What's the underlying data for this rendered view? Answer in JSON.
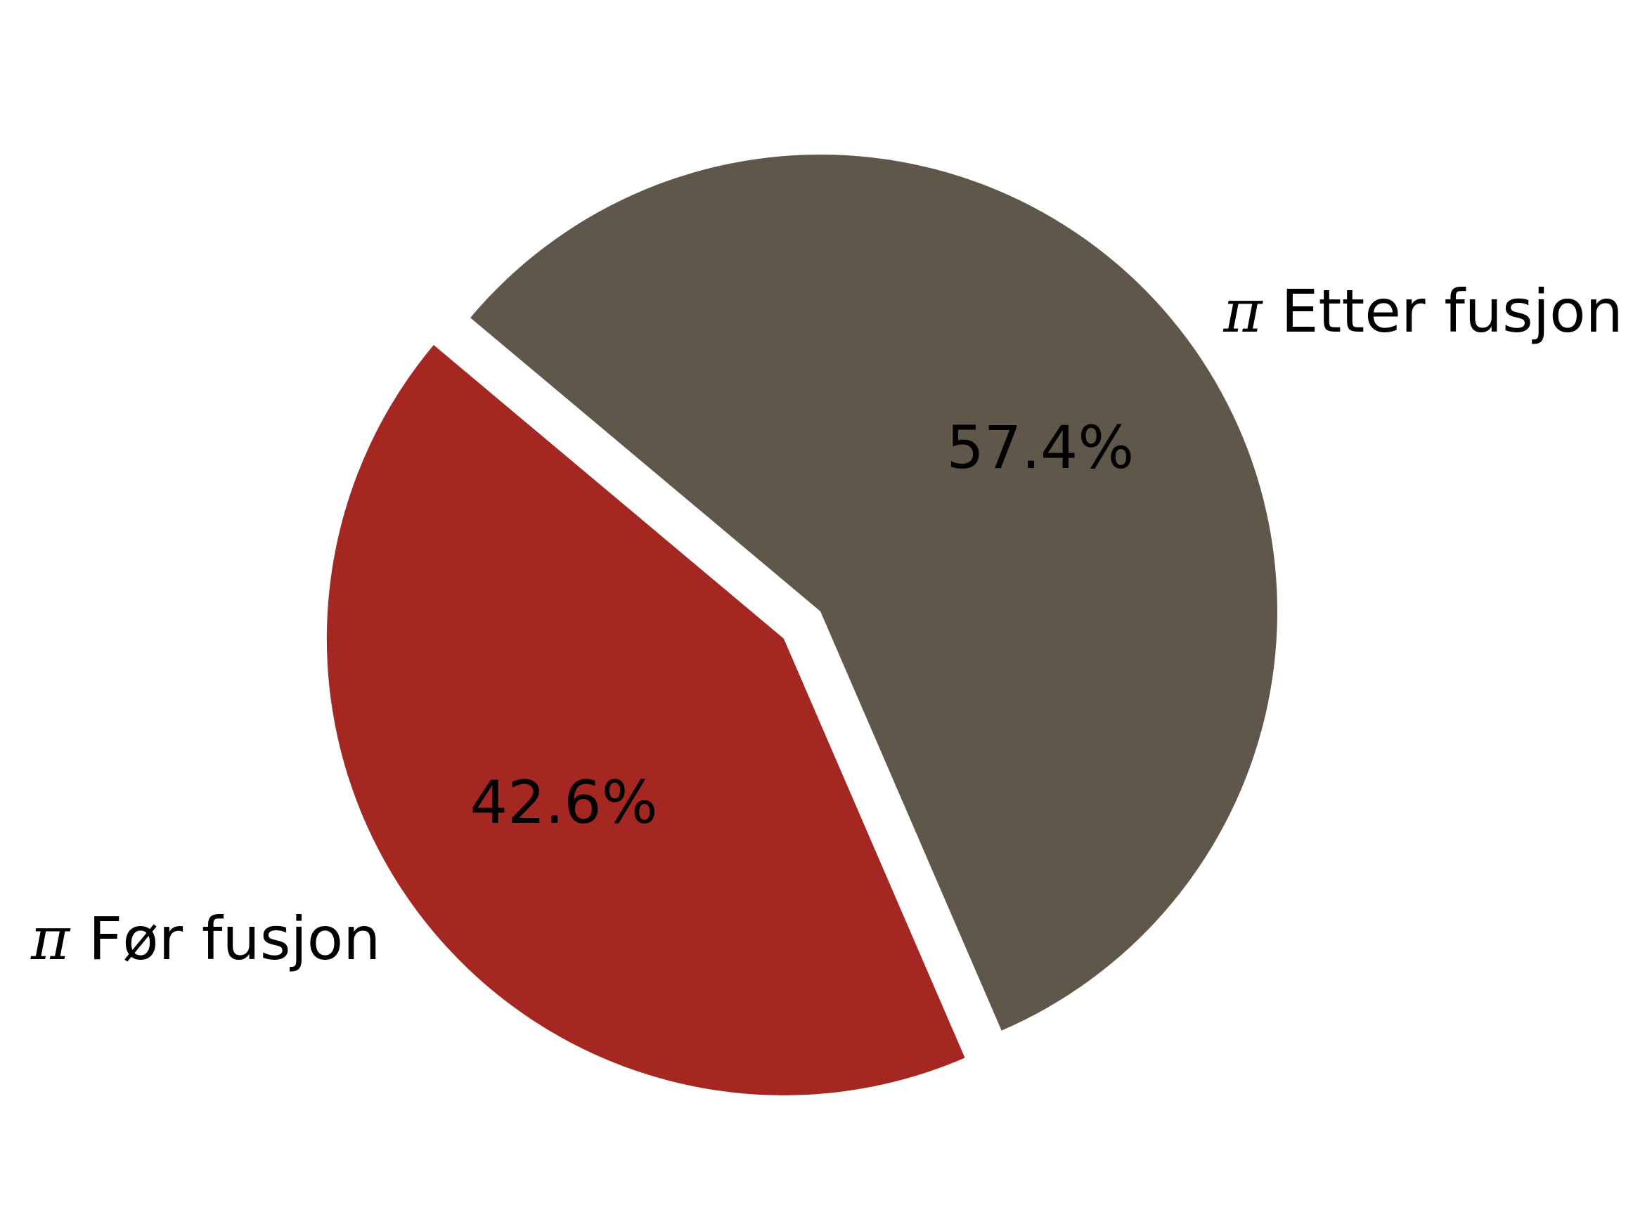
{
  "chart_data": {
    "type": "pie",
    "title": "",
    "slices": [
      {
        "label": "π Etter fusjon",
        "prefix": "π",
        "name": "Etter fusjon",
        "value": 57.4,
        "value_label": "57.4%",
        "color": "#5f574a",
        "exploded": false
      },
      {
        "label": "π Før fusjon",
        "prefix": "π",
        "name": "Før fusjon",
        "value": 42.6,
        "value_label": "42.6%",
        "color": "#a52722",
        "exploded": true
      }
    ],
    "legend": "none",
    "start_direction": "clockwise"
  }
}
